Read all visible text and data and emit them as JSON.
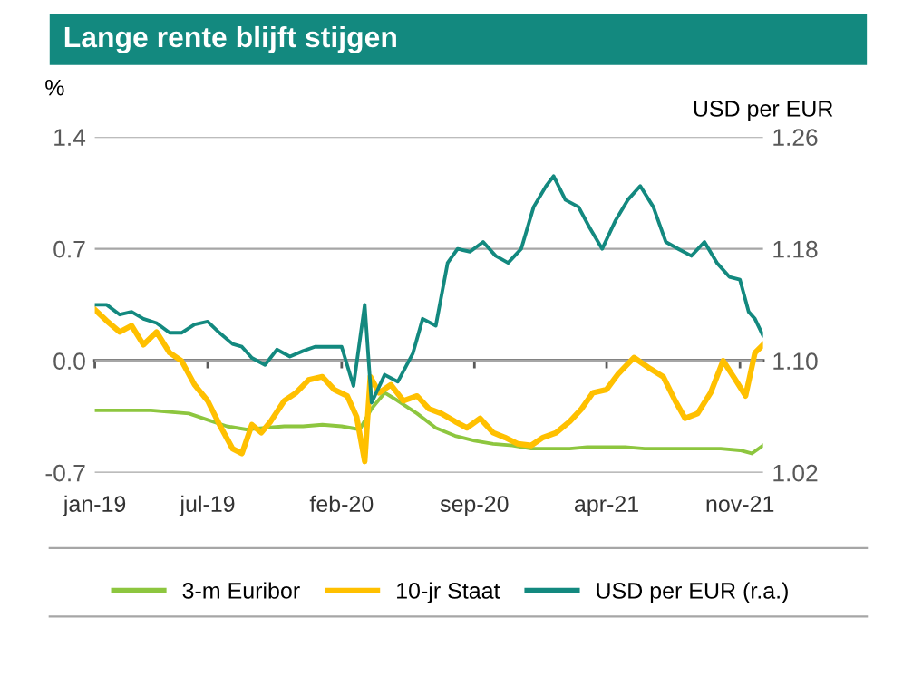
{
  "chart_data": {
    "type": "line",
    "title": "Lange rente blijft stijgen",
    "ylabel": "%",
    "y2label": "USD per EUR",
    "xlim": [
      "2019-01-01",
      "2021-12-08"
    ],
    "xticks": [
      {
        "value": "2019-01-01",
        "label": "jan-19"
      },
      {
        "value": "2019-07-01",
        "label": "jul-19"
      },
      {
        "value": "2020-02-01",
        "label": "feb-20"
      },
      {
        "value": "2020-09-01",
        "label": "sep-20"
      },
      {
        "value": "2021-04-01",
        "label": "apr-21"
      },
      {
        "value": "2021-11-01",
        "label": "nov-21"
      }
    ],
    "ylim": [
      -0.7,
      1.4
    ],
    "yticks": [
      {
        "value": 1.4,
        "label": "1.4"
      },
      {
        "value": 0.7,
        "label": "0.7"
      },
      {
        "value": 0.0,
        "label": "0.0"
      },
      {
        "value": -0.7,
        "label": "-0.7"
      }
    ],
    "y2lim": [
      1.02,
      1.26
    ],
    "y2ticks": [
      1.26,
      1.18,
      {
        "value": 1.1,
        "label": "1.10"
      },
      1.02
    ],
    "grid": "y",
    "legend": "bottom",
    "series": [
      {
        "name": "3-m Euribor",
        "color": "#8dc63f",
        "x": [
          "2019-01-01",
          "2019-02-01",
          "2019-03-01",
          "2019-04-01",
          "2019-05-01",
          "2019-06-01",
          "2019-07-01",
          "2019-08-01",
          "2019-09-01",
          "2019-10-01",
          "2019-11-01",
          "2019-12-01",
          "2020-01-01",
          "2020-02-01",
          "2020-03-01",
          "2020-03-20",
          "2020-04-10",
          "2020-05-01",
          "2020-06-01",
          "2020-07-01",
          "2020-08-01",
          "2020-09-01",
          "2020-10-01",
          "2020-11-01",
          "2020-12-01",
          "2021-01-01",
          "2021-02-01",
          "2021-03-01",
          "2021-04-01",
          "2021-05-01",
          "2021-06-01",
          "2021-07-01",
          "2021-08-01",
          "2021-09-01",
          "2021-10-01",
          "2021-11-01",
          "2021-11-20",
          "2021-12-08"
        ],
        "values": [
          -0.31,
          -0.31,
          -0.31,
          -0.31,
          -0.32,
          -0.33,
          -0.37,
          -0.41,
          -0.43,
          -0.42,
          -0.41,
          -0.41,
          -0.4,
          -0.41,
          -0.43,
          -0.3,
          -0.2,
          -0.25,
          -0.33,
          -0.42,
          -0.47,
          -0.5,
          -0.52,
          -0.53,
          -0.55,
          -0.55,
          -0.55,
          -0.54,
          -0.54,
          -0.54,
          -0.55,
          -0.55,
          -0.55,
          -0.55,
          -0.55,
          -0.56,
          -0.58,
          -0.53
        ]
      },
      {
        "name": "10-jr Staat",
        "color": "#ffc000",
        "x": [
          "2019-01-01",
          "2019-01-20",
          "2019-02-10",
          "2019-03-01",
          "2019-03-20",
          "2019-04-10",
          "2019-05-01",
          "2019-05-20",
          "2019-06-10",
          "2019-07-01",
          "2019-07-20",
          "2019-08-10",
          "2019-08-25",
          "2019-09-10",
          "2019-09-25",
          "2019-10-10",
          "2019-11-01",
          "2019-11-20",
          "2019-12-10",
          "2020-01-01",
          "2020-01-20",
          "2020-02-10",
          "2020-02-25",
          "2020-03-09",
          "2020-03-18",
          "2020-04-01",
          "2020-04-20",
          "2020-05-10",
          "2020-06-01",
          "2020-06-20",
          "2020-07-10",
          "2020-08-01",
          "2020-08-20",
          "2020-09-10",
          "2020-10-01",
          "2020-10-20",
          "2020-11-10",
          "2020-12-01",
          "2020-12-20",
          "2021-01-10",
          "2021-02-01",
          "2021-02-20",
          "2021-03-10",
          "2021-04-01",
          "2021-04-20",
          "2021-05-15",
          "2021-06-10",
          "2021-07-01",
          "2021-07-20",
          "2021-08-05",
          "2021-08-25",
          "2021-09-15",
          "2021-10-05",
          "2021-10-25",
          "2021-11-10",
          "2021-11-25",
          "2021-12-08"
        ],
        "values": [
          0.32,
          0.25,
          0.18,
          0.22,
          0.1,
          0.18,
          0.05,
          0.0,
          -0.15,
          -0.25,
          -0.4,
          -0.55,
          -0.58,
          -0.4,
          -0.45,
          -0.38,
          -0.25,
          -0.2,
          -0.12,
          -0.1,
          -0.18,
          -0.22,
          -0.35,
          -0.63,
          -0.1,
          -0.2,
          -0.15,
          -0.25,
          -0.22,
          -0.3,
          -0.33,
          -0.38,
          -0.42,
          -0.36,
          -0.45,
          -0.48,
          -0.52,
          -0.53,
          -0.48,
          -0.45,
          -0.38,
          -0.3,
          -0.2,
          -0.18,
          -0.08,
          0.02,
          -0.05,
          -0.1,
          -0.25,
          -0.36,
          -0.33,
          -0.2,
          0.0,
          -0.12,
          -0.22,
          0.05,
          0.1
        ]
      },
      {
        "name": "USD per EUR (r.a.)",
        "color": "#13897f",
        "axis": "y2",
        "x": [
          "2019-01-01",
          "2019-01-20",
          "2019-02-10",
          "2019-03-01",
          "2019-03-20",
          "2019-04-10",
          "2019-05-01",
          "2019-05-20",
          "2019-06-10",
          "2019-07-01",
          "2019-07-20",
          "2019-08-10",
          "2019-08-25",
          "2019-09-10",
          "2019-10-01",
          "2019-10-20",
          "2019-11-10",
          "2019-12-01",
          "2019-12-20",
          "2020-01-10",
          "2020-02-01",
          "2020-02-20",
          "2020-03-09",
          "2020-03-20",
          "2020-04-10",
          "2020-05-01",
          "2020-05-25",
          "2020-06-10",
          "2020-07-01",
          "2020-07-20",
          "2020-08-05",
          "2020-08-25",
          "2020-09-15",
          "2020-10-05",
          "2020-10-25",
          "2020-11-15",
          "2020-12-05",
          "2020-12-25",
          "2021-01-06",
          "2021-01-25",
          "2021-02-15",
          "2021-03-05",
          "2021-03-25",
          "2021-04-15",
          "2021-05-05",
          "2021-05-25",
          "2021-06-15",
          "2021-07-05",
          "2021-07-25",
          "2021-08-15",
          "2021-09-05",
          "2021-09-25",
          "2021-10-15",
          "2021-11-01",
          "2021-11-15",
          "2021-11-25",
          "2021-12-08"
        ],
        "values": [
          1.14,
          1.14,
          1.133,
          1.135,
          1.13,
          1.127,
          1.12,
          1.12,
          1.126,
          1.128,
          1.12,
          1.112,
          1.11,
          1.102,
          1.097,
          1.108,
          1.103,
          1.107,
          1.11,
          1.11,
          1.11,
          1.082,
          1.14,
          1.07,
          1.09,
          1.085,
          1.105,
          1.13,
          1.125,
          1.17,
          1.18,
          1.178,
          1.185,
          1.175,
          1.17,
          1.18,
          1.21,
          1.225,
          1.232,
          1.215,
          1.21,
          1.195,
          1.18,
          1.2,
          1.215,
          1.225,
          1.21,
          1.185,
          1.18,
          1.175,
          1.185,
          1.17,
          1.16,
          1.158,
          1.135,
          1.13,
          1.118
        ]
      }
    ]
  }
}
